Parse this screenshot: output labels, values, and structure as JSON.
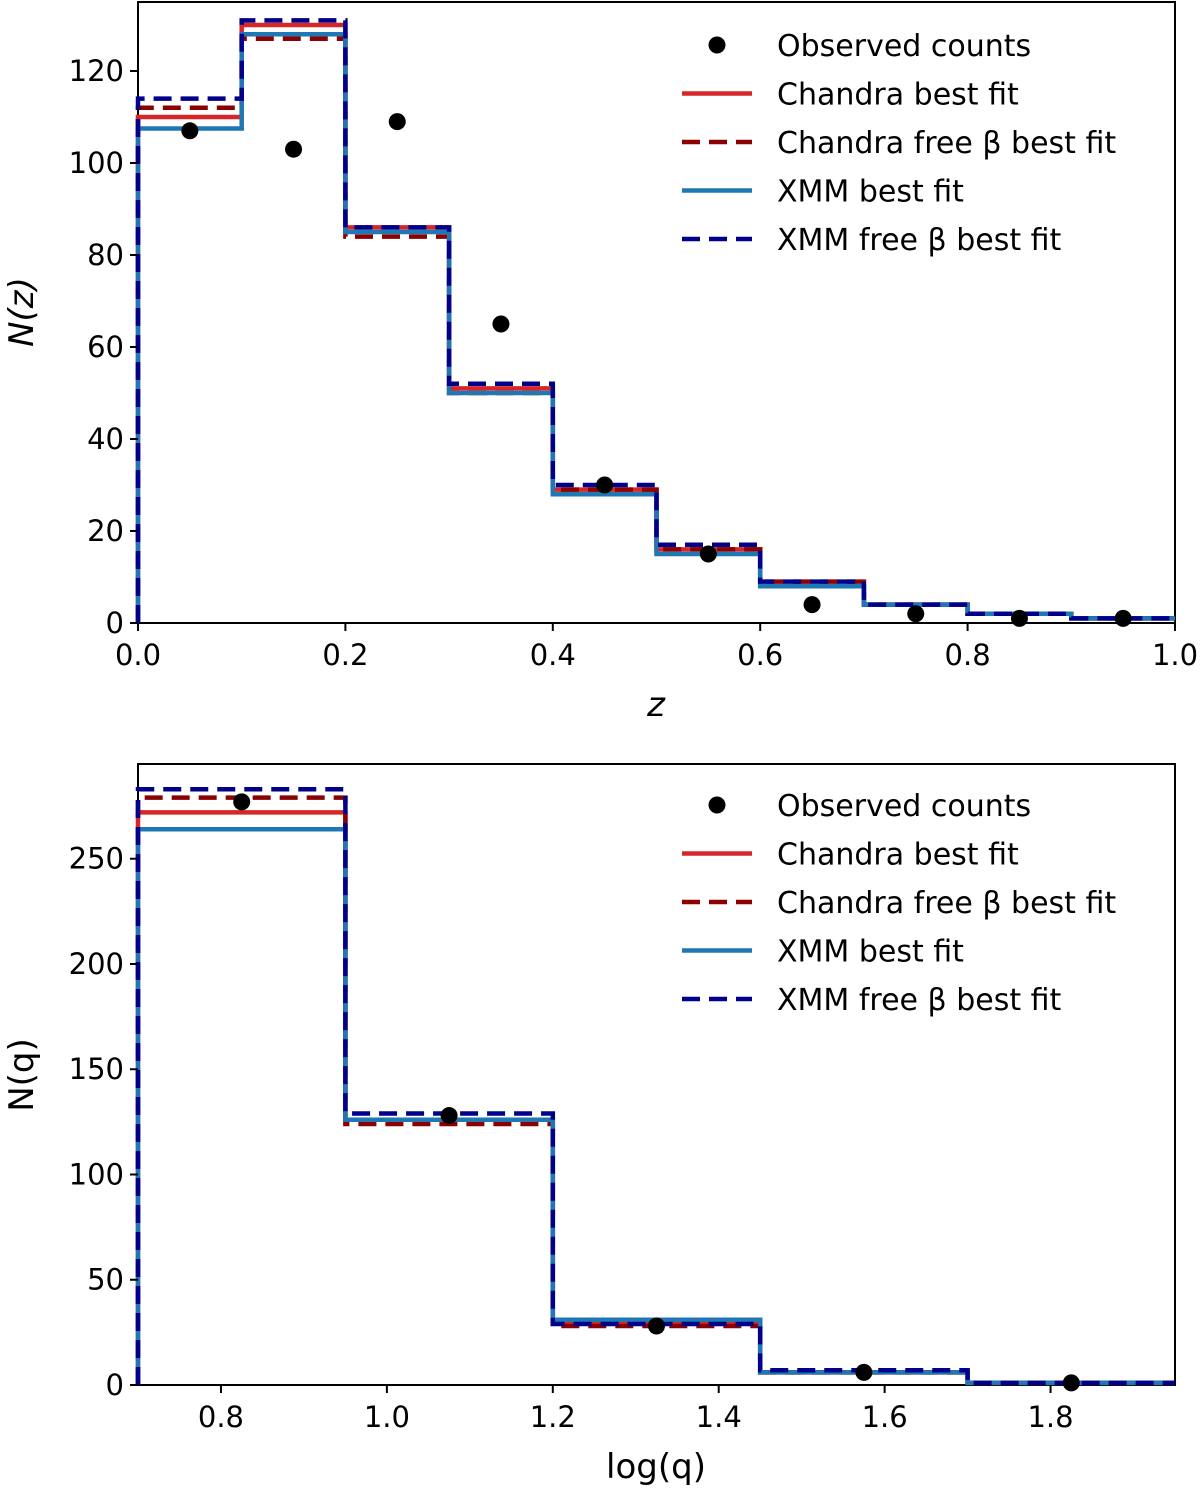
{
  "chart_data": [
    {
      "type": "line",
      "subtype": "step-histogram",
      "title": "",
      "xlabel": "z",
      "ylabel": "N(z)",
      "xlim": [
        0.0,
        1.0
      ],
      "ylim": [
        0,
        135
      ],
      "x_ticks": [
        "0.0",
        "0.2",
        "0.4",
        "0.6",
        "0.8",
        "1.0"
      ],
      "y_ticks": [
        "0",
        "20",
        "40",
        "60",
        "80",
        "100",
        "120"
      ],
      "grid": false,
      "legend_position": "top-right",
      "bin_edges": [
        0.0,
        0.1,
        0.2,
        0.3,
        0.4,
        0.5,
        0.6,
        0.7,
        0.8,
        0.9,
        1.0
      ],
      "scatter": {
        "name": "Observed counts",
        "color": "#000000",
        "x": [
          0.05,
          0.15,
          0.25,
          0.35,
          0.45,
          0.55,
          0.65,
          0.75,
          0.85,
          0.95
        ],
        "y": [
          107,
          103,
          109,
          65,
          30,
          15,
          4,
          2,
          1,
          1
        ]
      },
      "series": [
        {
          "name": "Chandra best fit",
          "color": "#d62728",
          "style": "solid",
          "values": [
            110,
            130,
            86,
            51,
            29,
            16,
            8,
            4,
            2,
            1
          ]
        },
        {
          "name": "Chandra free β best fit",
          "color": "#8b0000",
          "style": "dashed",
          "values": [
            112,
            127,
            84,
            50,
            29,
            16,
            9,
            4,
            2,
            1
          ]
        },
        {
          "name": "XMM best fit",
          "color": "#1f77b4",
          "style": "solid",
          "values": [
            107.5,
            128,
            85,
            50,
            28,
            15,
            8,
            4,
            2,
            1
          ]
        },
        {
          "name": "XMM free β best fit",
          "color": "#00008b",
          "style": "dashed",
          "values": [
            114,
            131,
            86,
            52,
            30,
            17,
            9,
            4,
            2,
            1
          ]
        }
      ]
    },
    {
      "type": "line",
      "subtype": "step-histogram",
      "title": "",
      "xlabel": "log(q)",
      "ylabel": "N(q)",
      "xlim": [
        0.7,
        1.95
      ],
      "ylim": [
        0,
        295
      ],
      "x_ticks": [
        "0.8",
        "1.0",
        "1.2",
        "1.4",
        "1.6",
        "1.8"
      ],
      "y_ticks": [
        "0",
        "50",
        "100",
        "150",
        "200",
        "250"
      ],
      "grid": false,
      "legend_position": "top-right",
      "bin_edges": [
        0.7,
        0.95,
        1.2,
        1.45,
        1.7,
        1.95
      ],
      "scatter": {
        "name": "Observed counts",
        "color": "#000000",
        "x": [
          0.825,
          1.075,
          1.325,
          1.575,
          1.825
        ],
        "y": [
          277,
          128,
          28,
          6,
          1
        ]
      },
      "series": [
        {
          "name": "Chandra best fit",
          "color": "#d62728",
          "style": "solid",
          "values": [
            272,
            126,
            30,
            6,
            1
          ]
        },
        {
          "name": "Chandra free β best fit",
          "color": "#8b0000",
          "style": "dashed",
          "values": [
            279,
            124,
            28,
            6,
            1
          ]
        },
        {
          "name": "XMM best fit",
          "color": "#1f77b4",
          "style": "solid",
          "values": [
            264,
            126,
            31,
            6,
            1
          ]
        },
        {
          "name": "XMM free β best fit",
          "color": "#00008b",
          "style": "dashed",
          "values": [
            283,
            129,
            29,
            7,
            1
          ]
        }
      ]
    }
  ]
}
